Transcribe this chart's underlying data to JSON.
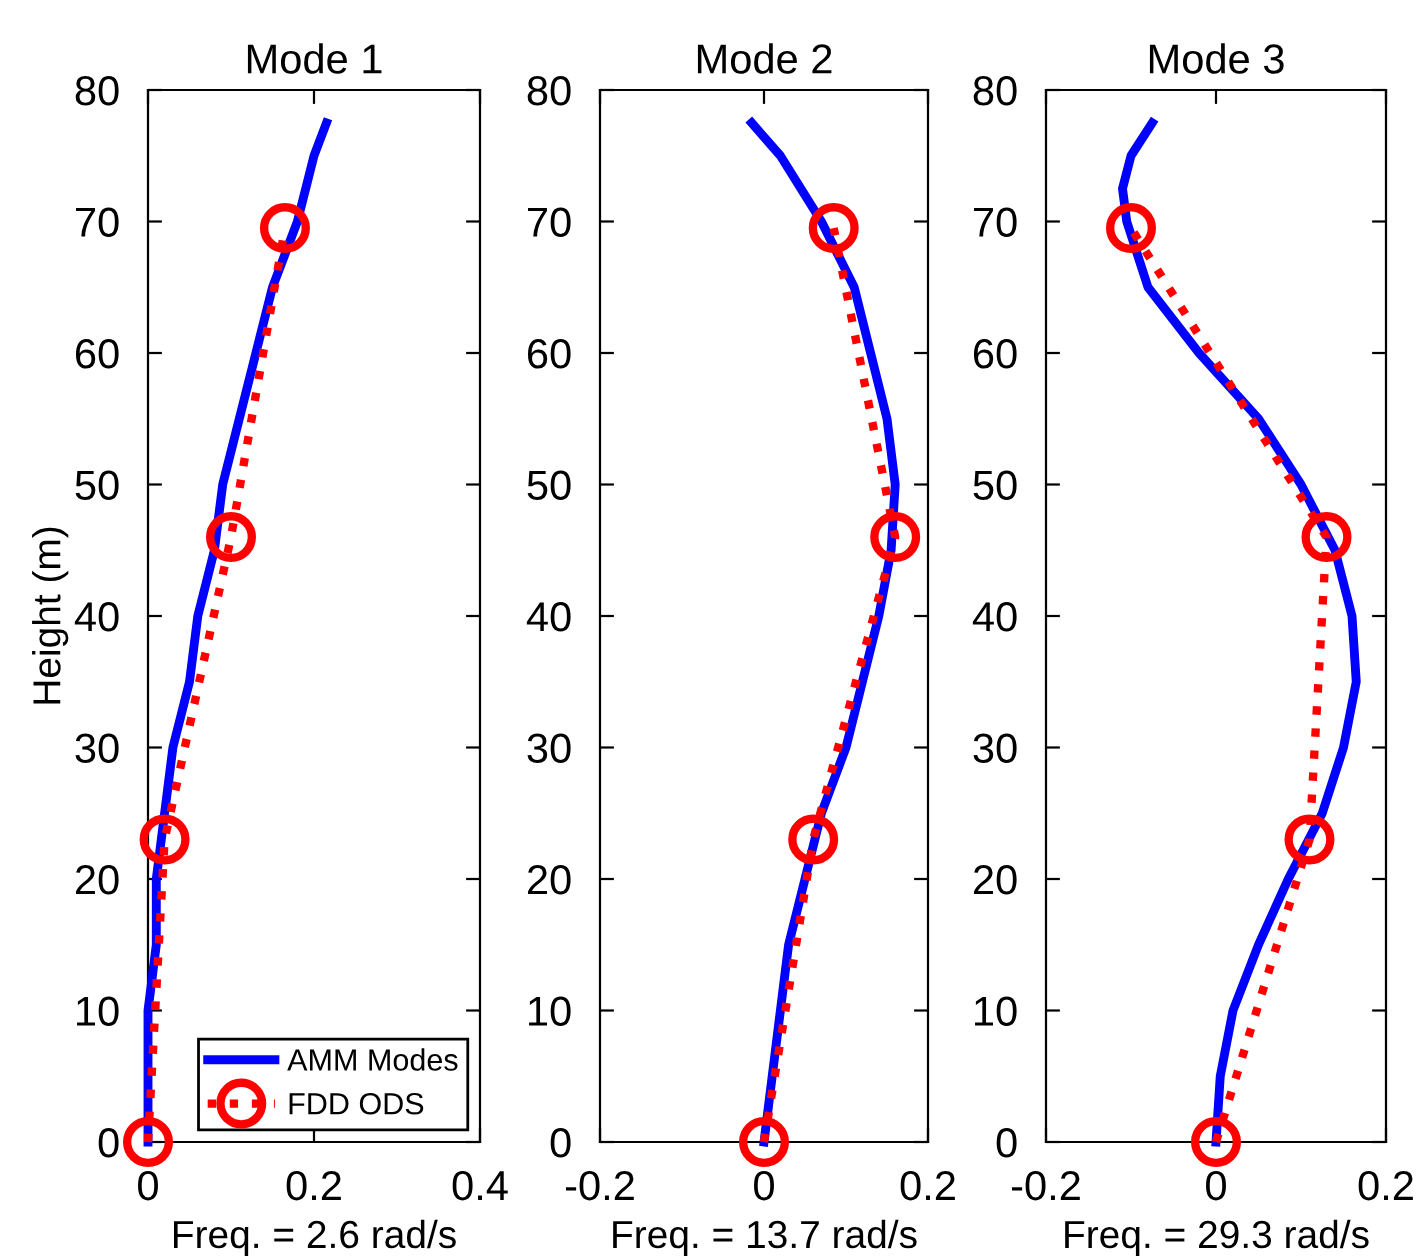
{
  "chart_data": [
    {
      "type": "line",
      "title": "Mode 1",
      "xlabel": "Freq. = 2.6 rad/s",
      "ylabel": "Height (m)",
      "xlim": [
        0,
        0.4
      ],
      "xticks": [
        0,
        0.2,
        0.4
      ],
      "ylim": [
        0,
        80
      ],
      "yticks": [
        0,
        10,
        20,
        30,
        40,
        50,
        60,
        70,
        80
      ],
      "grid": false,
      "legend": "bottom right",
      "series": [
        {
          "name": "AMM Modes",
          "color": "#0000ff",
          "marker": "none",
          "line_style": "solid",
          "x": [
            0,
            0,
            0,
            0.01,
            0.01,
            0.02,
            0.03,
            0.05,
            0.06,
            0.08,
            0.09,
            0.11,
            0.13,
            0.15,
            0.18,
            0.2,
            0.215
          ],
          "values": [
            0,
            5,
            10,
            15,
            20,
            25,
            30,
            35,
            40,
            45,
            50,
            55,
            60,
            65,
            70,
            75,
            77.5
          ]
        },
        {
          "name": "FDD ODS",
          "color": "#ff0000",
          "marker": "circle",
          "line_style": "dotted",
          "x": [
            0,
            0.02,
            0.1,
            0.165
          ],
          "values": [
            0,
            23,
            46,
            69.5
          ]
        }
      ]
    },
    {
      "type": "line",
      "title": "Mode 2",
      "xlabel": "Freq. = 13.7 rad/s",
      "xlim": [
        -0.2,
        0.2
      ],
      "xticks": [
        -0.2,
        0,
        0.2
      ],
      "ylim": [
        0,
        80
      ],
      "yticks": [
        0,
        10,
        20,
        30,
        40,
        50,
        60,
        70,
        80
      ],
      "grid": false,
      "series": [
        {
          "color": "#0000ff",
          "marker": "none",
          "line_style": "solid",
          "x": [
            0,
            0.01,
            0.02,
            0.03,
            0.05,
            0.07,
            0.1,
            0.12,
            0.14,
            0.155,
            0.16,
            0.15,
            0.13,
            0.11,
            0.07,
            0.02,
            -0.015
          ],
          "values": [
            0,
            5,
            10,
            15,
            20,
            25,
            30,
            35,
            40,
            45,
            50,
            55,
            60,
            65,
            70,
            75,
            77.5
          ]
        },
        {
          "color": "#ff0000",
          "marker": "circle",
          "line_style": "dotted",
          "x": [
            0,
            0.06,
            0.16,
            0.085
          ],
          "values": [
            0,
            23,
            46,
            69.5
          ]
        }
      ]
    },
    {
      "type": "line",
      "title": "Mode 3",
      "xlabel": "Freq. = 29.3 rad/s",
      "xlim": [
        -0.2,
        0.2
      ],
      "xticks": [
        -0.2,
        0,
        0.2
      ],
      "ylim": [
        0,
        80
      ],
      "yticks": [
        0,
        10,
        20,
        30,
        40,
        50,
        60,
        70,
        80
      ],
      "grid": false,
      "series": [
        {
          "color": "#0000ff",
          "marker": "none",
          "line_style": "solid",
          "x": [
            0,
            0.005,
            0.02,
            0.05,
            0.085,
            0.125,
            0.15,
            0.165,
            0.16,
            0.14,
            0.1,
            0.05,
            -0.02,
            -0.08,
            -0.105,
            -0.11,
            -0.1,
            -0.075
          ],
          "values": [
            0,
            5,
            10,
            15,
            20,
            25,
            30,
            35,
            40,
            45,
            50,
            55,
            60,
            65,
            70,
            72.5,
            75,
            77.5
          ]
        },
        {
          "color": "#ff0000",
          "marker": "circle",
          "line_style": "dotted",
          "x": [
            0,
            0.11,
            0.13,
            -0.1
          ],
          "values": [
            0,
            23,
            46,
            69.5
          ]
        }
      ]
    }
  ]
}
